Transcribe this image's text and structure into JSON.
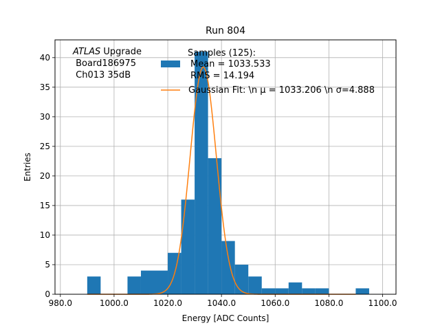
{
  "chart_data": {
    "type": "bar",
    "title": "Run 804",
    "xlabel": "Energy [ADC Counts]",
    "ylabel": "Entries",
    "xlim": [
      978,
      1105
    ],
    "ylim": [
      0,
      43
    ],
    "grid": true,
    "x_ticks": [
      980,
      1000,
      1020,
      1040,
      1060,
      1080,
      1100
    ],
    "x_tick_labels": [
      "980.0",
      "1000.0",
      "1020.0",
      "1040.0",
      "1060.0",
      "1080.0",
      "1100.0"
    ],
    "y_ticks": [
      0,
      5,
      10,
      15,
      20,
      25,
      30,
      35,
      40
    ],
    "y_tick_labels": [
      "0",
      "5",
      "10",
      "15",
      "20",
      "25",
      "30",
      "35",
      "40"
    ],
    "histogram": {
      "bin_edges": [
        990,
        995,
        1000,
        1005,
        1010,
        1015,
        1020,
        1025,
        1030,
        1035,
        1040,
        1045,
        1050,
        1055,
        1060,
        1065,
        1070,
        1075,
        1080,
        1085,
        1090,
        1095
      ],
      "counts": [
        3,
        0,
        0,
        3,
        4,
        4,
        7,
        16,
        41,
        23,
        9,
        5,
        3,
        1,
        1,
        2,
        1,
        1,
        0,
        0,
        1
      ],
      "color": "#1f77b4"
    },
    "fit": {
      "type": "gaussian",
      "amplitude": 38.4,
      "mean": 1033.206,
      "sigma": 4.888,
      "x_range": [
        990,
        1090
      ],
      "color": "#ff7f0e"
    },
    "legend": {
      "placement": "top-center",
      "entries": [
        {
          "marker": "bar",
          "color": "#1f77b4",
          "lines": [
            "Samples (125):",
            "Mean = 1033.533",
            "RMS = 14.194"
          ]
        },
        {
          "marker": "line",
          "color": "#ff7f0e",
          "lines": [
            "Gaussian Fit: \\n μ = 1033.206 \\n σ=4.888"
          ]
        }
      ]
    },
    "annotation": {
      "placement": "top-left",
      "italic": "ATLAS",
      "rest": " Upgrade",
      "lines": [
        " Board186975",
        " Ch013 35dB"
      ]
    }
  }
}
